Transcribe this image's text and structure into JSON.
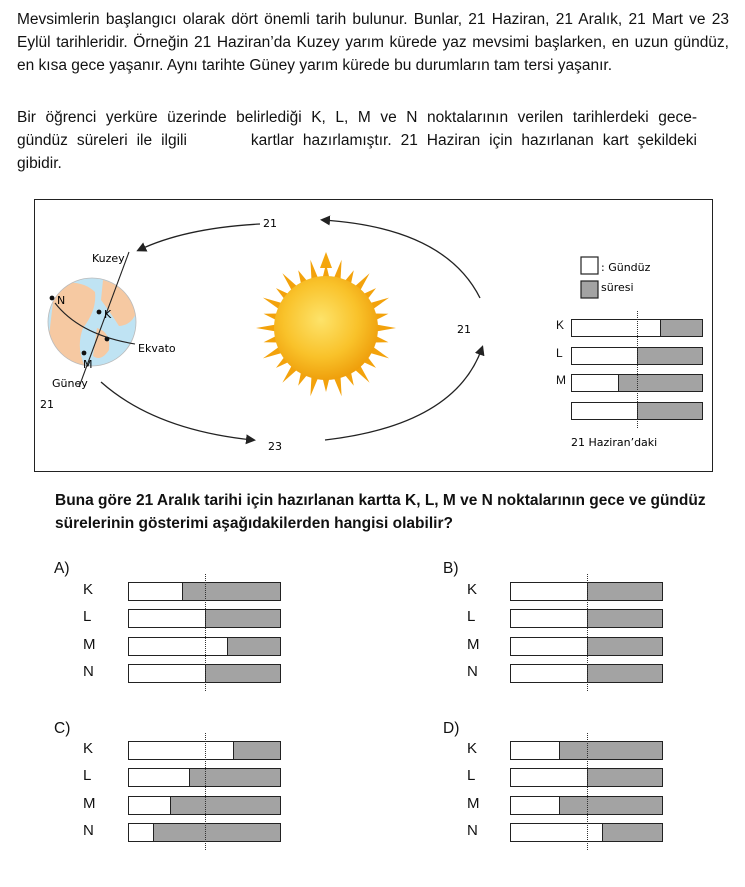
{
  "intro": {
    "text": "Mevsimlerin başlangıcı olarak dört önemli tarih bulunur. Bunlar, 21 Haziran, 21 Aralık, 21 Mart ve 23 Eylül tarihleridir. Örneğin 21 Haziran’da Kuzey yarım kürede yaz mevsimi başlarken, en uzun gündüz, en kısa gece yaşanır. Aynı tarihte Güney yarım kürede bu durumların tam tersi yaşanır."
  },
  "scenario": {
    "line1": "Bir öğrenci yerküre üzerinde belirlediği K, L, M ve N noktalarının verilen tarihlerdeki gece-",
    "line2a": "gündüz süreleri ile ilgili",
    "line2b": "kartlar hazırlamıştır. 21 Haziran için hazırlanan kart şekildeki",
    "line3": "gibidir."
  },
  "figure": {
    "orbit_labels": {
      "top": "21",
      "right": "21",
      "bottom": "23",
      "left": "21"
    },
    "globe": {
      "north_label": "Kuzey",
      "south_label": "Güney",
      "equator_label": "Ekvato",
      "points": {
        "n": "N",
        "k": "K",
        "m": "M"
      }
    },
    "legend": {
      "colon_label": ": Gündüz",
      "second_label": "süresi"
    },
    "card_rows": [
      "K",
      "L",
      "M",
      ""
    ],
    "card_day_fractions": [
      0.68,
      0.5,
      0.35,
      0.5
    ],
    "caption": "21 Haziran’daki",
    "colors": {
      "sun_core": "#f7b515",
      "sun_rays": "#f4a60d",
      "ocean": "#bfe3f3",
      "land": "#f6c9a2",
      "night": "#a3a3a3"
    }
  },
  "question": "Buna göre 21 Aralık tarihi için hazırlanan kartta K, L, M ve N noktalarının gece ve gündüz sürelerinin gösterimi aşağıdakilerden hangisi olabilir?",
  "options": [
    {
      "letter": "A)",
      "rows": [
        "K",
        "L",
        "M",
        "N"
      ],
      "day_fractions": [
        0.35,
        0.5,
        0.65,
        0.5
      ]
    },
    {
      "letter": "B)",
      "rows": [
        "K",
        "L",
        "M",
        "N"
      ],
      "day_fractions": [
        0.5,
        0.5,
        0.5,
        0.5
      ]
    },
    {
      "letter": "C)",
      "rows": [
        "K",
        "L",
        "M",
        "N"
      ],
      "day_fractions": [
        0.69,
        0.4,
        0.27,
        0.16
      ]
    },
    {
      "letter": "D)",
      "rows": [
        "K",
        "L",
        "M",
        "N"
      ],
      "day_fractions": [
        0.32,
        0.5,
        0.32,
        0.6
      ]
    }
  ]
}
